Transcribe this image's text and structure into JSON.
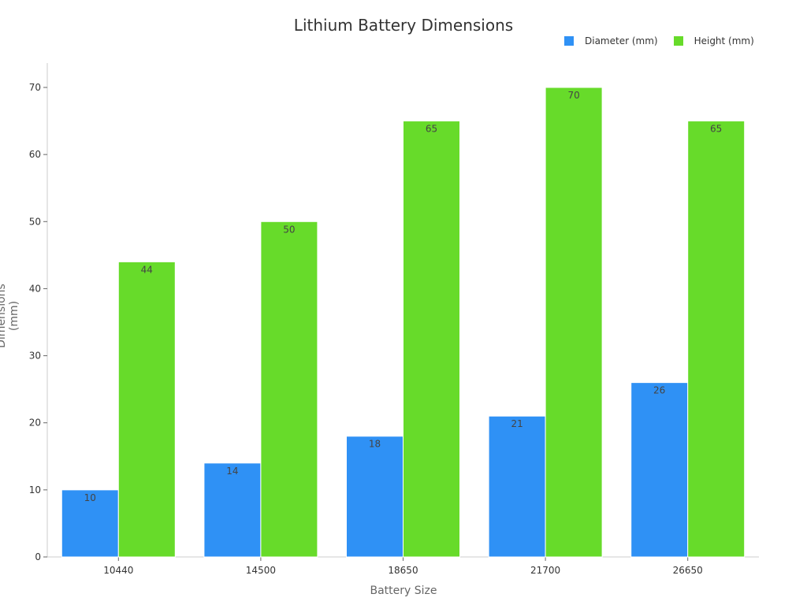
{
  "chart_data": {
    "type": "bar",
    "title": "Lithium Battery Dimensions",
    "xlabel": "Battery Size",
    "ylabel": "Dimensions (mm)",
    "categories": [
      "10440",
      "14500",
      "18650",
      "21700",
      "26650"
    ],
    "series": [
      {
        "name": "Diameter (mm)",
        "color": "#2f91f5",
        "values": [
          10,
          14,
          18,
          21,
          26
        ]
      },
      {
        "name": "Height (mm)",
        "color": "#67db2a",
        "values": [
          44,
          50,
          65,
          70,
          65
        ]
      }
    ],
    "ylim": [
      0,
      73
    ],
    "yticks": [
      0,
      10,
      20,
      30,
      40,
      50,
      60,
      70
    ],
    "grid": false,
    "legend_position": "top-right",
    "data_labels": true
  }
}
